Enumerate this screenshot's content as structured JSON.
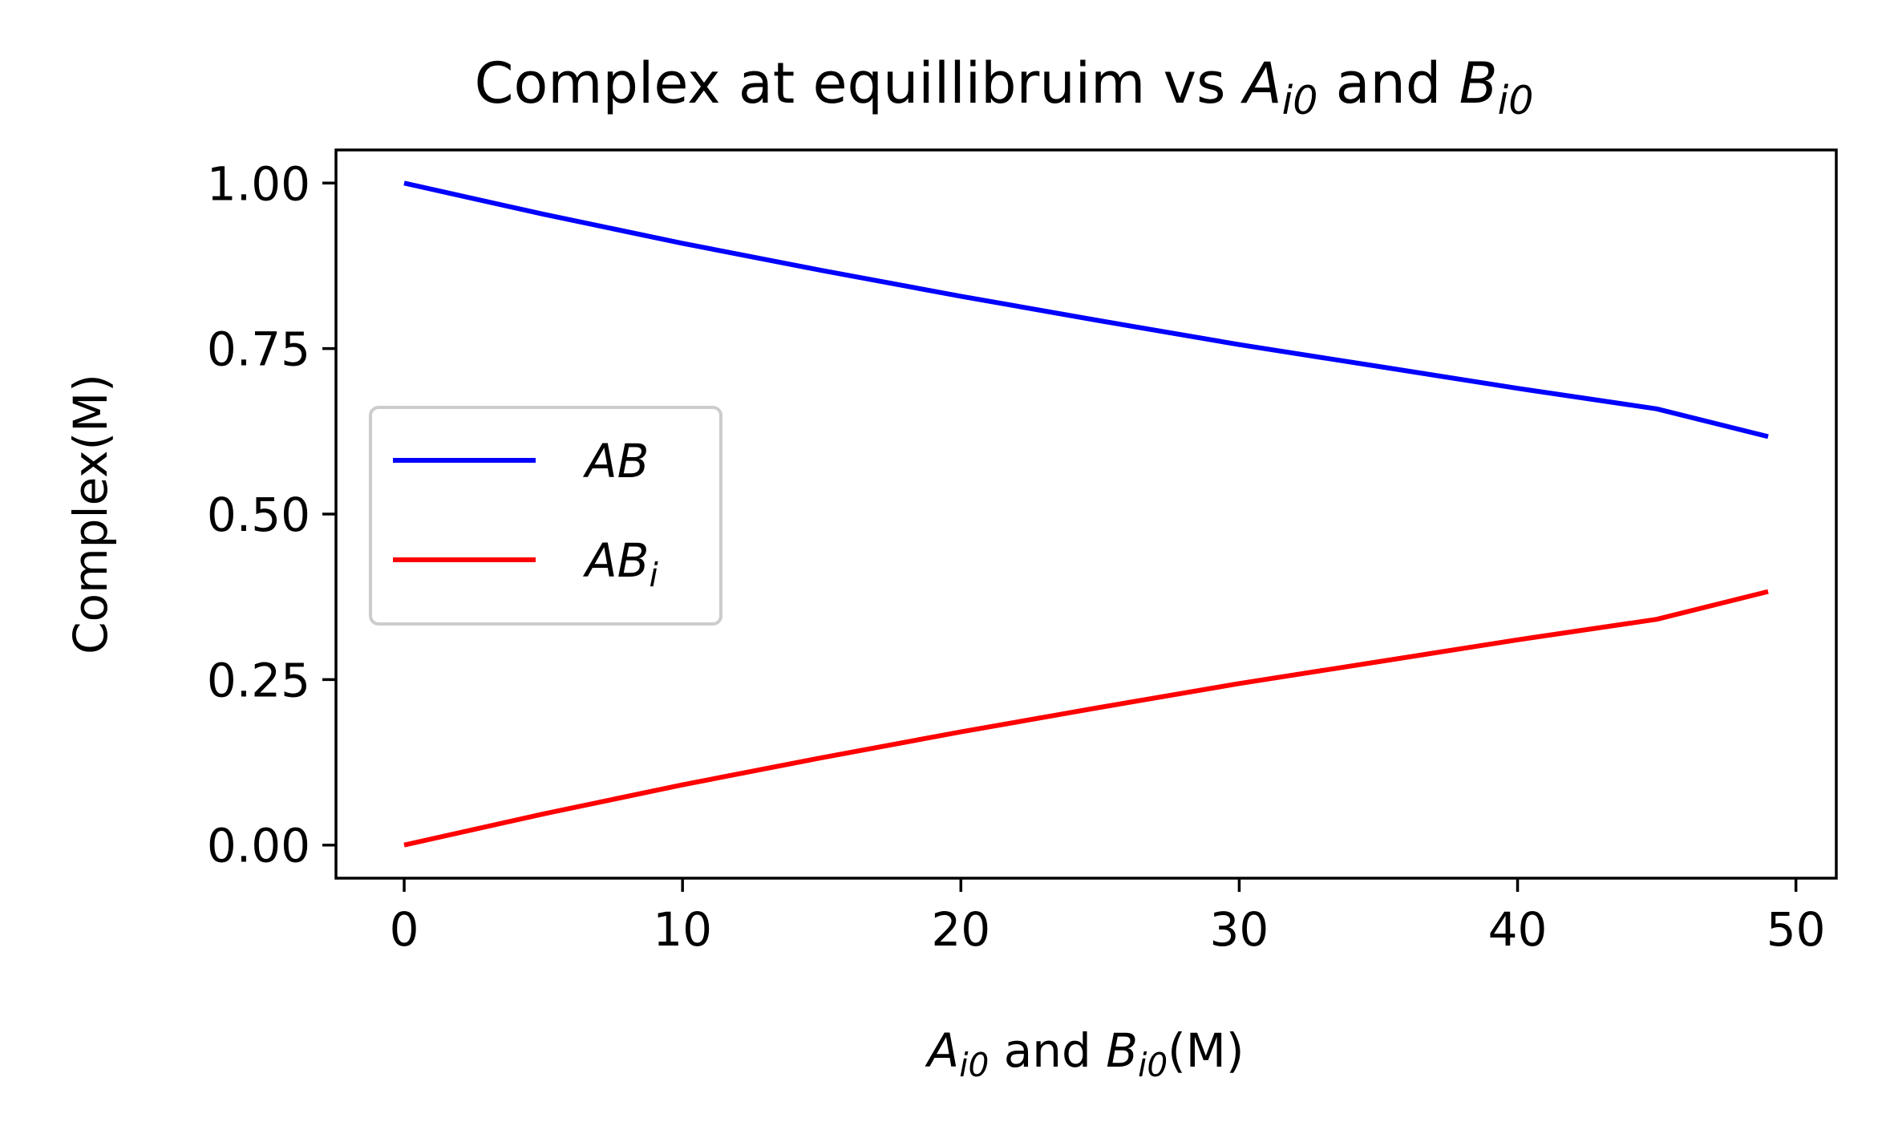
{
  "chart_data": {
    "type": "line",
    "title": {
      "prefix": "Complex at equillibruim vs ",
      "var1": "A",
      "var1_sub": "i0",
      "middle": " and ",
      "var2": "B",
      "var2_sub": "i0"
    },
    "xlabel": {
      "var1": "A",
      "var1_sub": "i0",
      "middle": " and ",
      "var2": "B",
      "var2_sub": "i0",
      "suffix": "(M)"
    },
    "ylabel": "Complex(M)",
    "xlim": [
      -2.45,
      51.45
    ],
    "ylim": [
      -0.05,
      1.05
    ],
    "xticks": [
      0,
      10,
      20,
      30,
      40,
      50
    ],
    "xtick_labels": [
      "0",
      "10",
      "20",
      "30",
      "40",
      "50"
    ],
    "yticks": [
      0.0,
      0.25,
      0.5,
      0.75,
      1.0
    ],
    "ytick_labels": [
      "0.00",
      "0.25",
      "0.50",
      "0.75",
      "1.00"
    ],
    "grid": false,
    "legend_position": "center-left",
    "x": [
      0,
      5,
      10,
      15,
      20,
      25,
      30,
      35,
      40,
      45,
      49
    ],
    "series": [
      {
        "name": "AB",
        "name_sub": "",
        "color": "#0000ff",
        "values": [
          1.0,
          0.953,
          0.909,
          0.868,
          0.829,
          0.792,
          0.756,
          0.723,
          0.69,
          0.659,
          0.617
        ]
      },
      {
        "name": "AB",
        "name_sub": "i",
        "color": "#ff0000",
        "values": [
          0.0,
          0.047,
          0.091,
          0.132,
          0.171,
          0.208,
          0.244,
          0.277,
          0.31,
          0.341,
          0.383
        ]
      }
    ]
  }
}
